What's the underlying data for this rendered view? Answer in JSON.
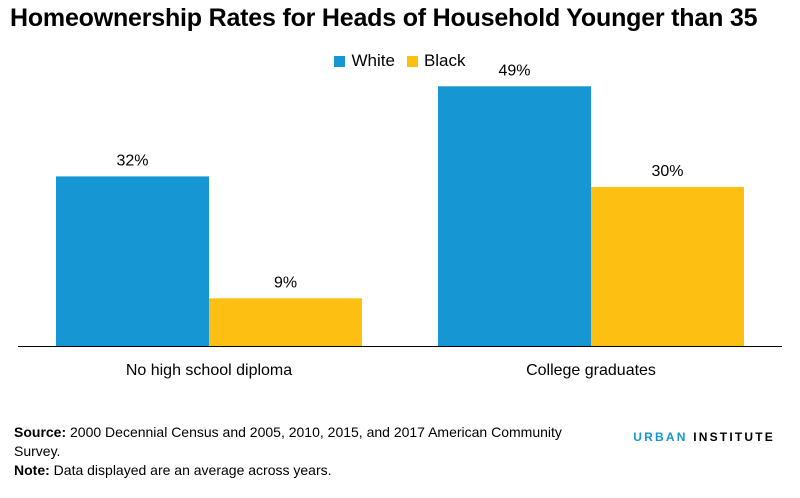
{
  "title": "Homeownership Rates for Heads of Household Younger than 35",
  "colors": {
    "White": "#1696d2",
    "Black": "#fdbf11",
    "axis": "#000000"
  },
  "notes": {
    "source_label": "Source:",
    "source_text": "2000 Decennial Census and 2005, 2010, 2015, and 2017 American Community Survey.",
    "note_label": "Note:",
    "note_text": "Data displayed are an average across years."
  },
  "brand": {
    "part1": "URBAN",
    "part2": "INSTITUTE"
  },
  "chart_data": {
    "type": "bar",
    "title": "Homeownership Rates for Heads of Household Younger than 35",
    "categories": [
      "No high school diploma",
      "College graduates"
    ],
    "series": [
      {
        "name": "White",
        "values": [
          32,
          49
        ],
        "labels": [
          "32%",
          "49%"
        ]
      },
      {
        "name": "Black",
        "values": [
          9,
          30
        ],
        "labels": [
          "9%",
          "30%"
        ]
      }
    ],
    "ylim": [
      0,
      50
    ],
    "legend_position": "top",
    "grid": false
  }
}
